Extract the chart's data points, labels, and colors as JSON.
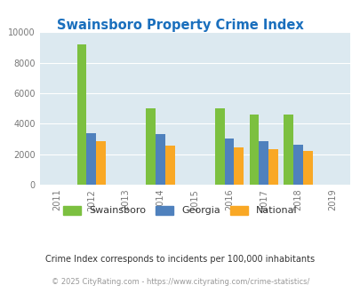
{
  "title": "Swainsboro Property Crime Index",
  "title_color": "#1a6fbd",
  "years": [
    2011,
    2012,
    2013,
    2014,
    2015,
    2016,
    2017,
    2018,
    2019
  ],
  "data_years": [
    2012,
    2014,
    2016,
    2017,
    2018
  ],
  "swainsboro": [
    9200,
    5000,
    5000,
    4600,
    4600
  ],
  "georgia": [
    3400,
    3300,
    3050,
    2850,
    2600
  ],
  "national": [
    2850,
    2550,
    2450,
    2350,
    2200
  ],
  "color_swainsboro": "#7cc040",
  "color_georgia": "#4f81bd",
  "color_national": "#f9a825",
  "bg_color": "#dce9f0",
  "ylim": [
    0,
    10000
  ],
  "yticks": [
    0,
    2000,
    4000,
    6000,
    8000,
    10000
  ],
  "legend_labels": [
    "Swainsboro",
    "Georgia",
    "National"
  ],
  "footnote1": "Crime Index corresponds to incidents per 100,000 inhabitants",
  "footnote2": "© 2025 CityRating.com - https://www.cityrating.com/crime-statistics/",
  "footnote_color1": "#333333",
  "footnote_color2": "#999999",
  "bar_width": 0.28
}
